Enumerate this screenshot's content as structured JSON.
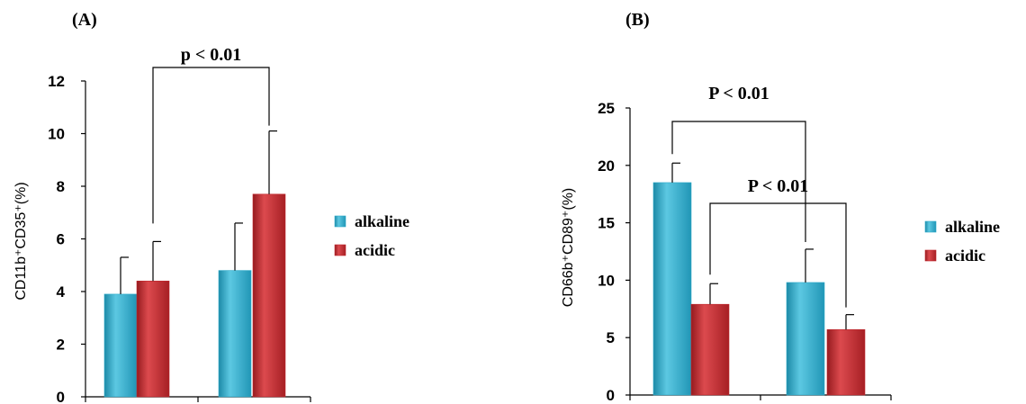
{
  "colors": {
    "alkaline": "#2aa9c9",
    "acidic": "#c0272d",
    "axis": "#000000"
  },
  "icons": {
    "legend_marker": "square-icon"
  },
  "chart_data": [
    {
      "panel": "(A)",
      "type": "bar",
      "title": "",
      "xlabel": "",
      "ylabel": "CD11b⁺CD35⁺(%)",
      "ylim": [
        0,
        12
      ],
      "yticks": [
        "0",
        "2",
        "4",
        "6",
        "8",
        "10",
        "12"
      ],
      "categories": [
        "",
        ""
      ],
      "series": [
        {
          "name": "alkaline",
          "values": [
            3.9,
            4.8
          ],
          "errors": [
            1.4,
            1.8
          ]
        },
        {
          "name": "acidic",
          "values": [
            4.4,
            7.7
          ],
          "errors": [
            1.5,
            2.4
          ]
        }
      ],
      "legend": "right",
      "grid": false,
      "annotations": [
        {
          "text": "p < 0.01",
          "from": {
            "series": 1,
            "category": 0
          },
          "to": {
            "series": 1,
            "category": 1
          }
        }
      ]
    },
    {
      "panel": "(B)",
      "type": "bar",
      "title": "",
      "xlabel": "",
      "ylabel": "CD66b⁺CD89⁺(%)",
      "ylim": [
        0,
        25
      ],
      "yticks": [
        "0",
        "5",
        "10",
        "15",
        "20",
        "25"
      ],
      "categories": [
        "",
        ""
      ],
      "series": [
        {
          "name": "alkaline",
          "values": [
            18.5,
            9.8
          ],
          "errors": [
            1.7,
            2.9
          ]
        },
        {
          "name": "acidic",
          "values": [
            7.9,
            5.7
          ],
          "errors": [
            1.8,
            1.3
          ]
        }
      ],
      "legend": "right",
      "grid": false,
      "annotations": [
        {
          "text": "P < 0.01",
          "from": {
            "series": 0,
            "category": 0
          },
          "to": {
            "series": 0,
            "category": 1
          }
        },
        {
          "text": "P < 0.01",
          "from": {
            "series": 1,
            "category": 0
          },
          "to": {
            "series": 1,
            "category": 1
          }
        }
      ]
    }
  ]
}
